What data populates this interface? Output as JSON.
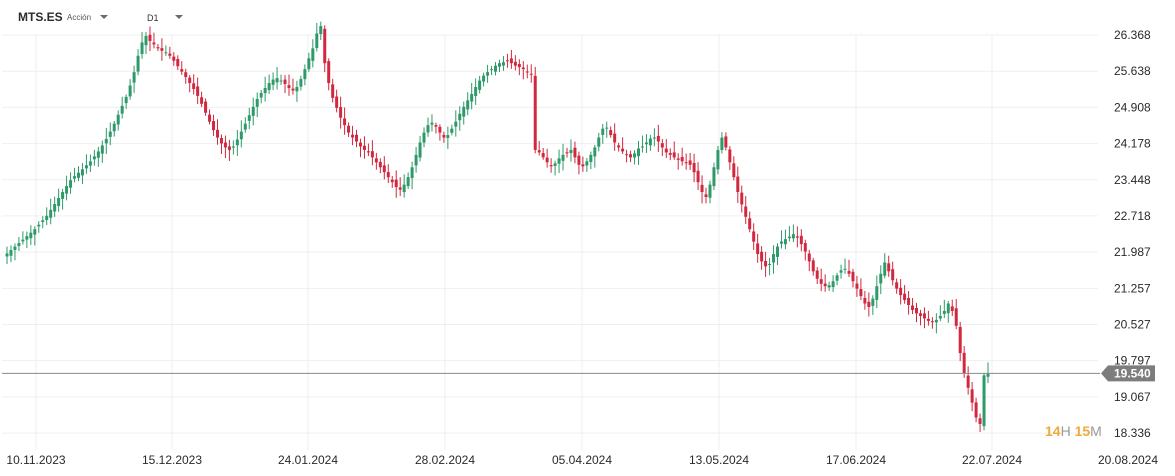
{
  "toolbar": {
    "symbol": "MTS.ES",
    "asset_type": "Acción",
    "timeframe": "D1"
  },
  "countdown": {
    "hours": "14",
    "hours_unit": "H",
    "minutes": "15",
    "minutes_unit": "M"
  },
  "colors": {
    "up": "#2e9a6a",
    "down": "#d2283f",
    "price_line": "#8a8a8a",
    "price_tag": "#7d7d7d",
    "countdown": "#f0a93a"
  },
  "chart_data": {
    "type": "candlestick",
    "ylim": [
      18.15,
      26.66
    ],
    "y_ticks": [
      "26.368",
      "25.638",
      "24.908",
      "24.178",
      "23.448",
      "22.718",
      "21.987",
      "21.257",
      "20.527",
      "19.797",
      "19.067",
      "18.336"
    ],
    "x_ticks": [
      "10.11.2023",
      "15.12.2023",
      "24.01.2024",
      "28.02.2024",
      "05.04.2024",
      "13.05.2024",
      "17.06.2024",
      "22.07.2024",
      "20.08.2024"
    ],
    "current_price": "19.540",
    "close_series": [
      21.96,
      22.03,
      22.1,
      22.17,
      22.24,
      22.31,
      22.38,
      22.45,
      22.54,
      22.63,
      22.72,
      22.84,
      22.96,
      23.08,
      23.2,
      23.32,
      23.44,
      23.52,
      23.59,
      23.66,
      23.74,
      23.82,
      23.92,
      24.02,
      24.14,
      24.27,
      24.42,
      24.58,
      24.76,
      24.94,
      25.12,
      25.35,
      25.62,
      25.95,
      26.22,
      26.35,
      26.25,
      26.18,
      26.1,
      26.05,
      26.02,
      25.95,
      25.85,
      25.74,
      25.63,
      25.52,
      25.4,
      25.28,
      25.14,
      24.98,
      24.8,
      24.62,
      24.45,
      24.3,
      24.18,
      24.1,
      24.05,
      24.12,
      24.26,
      24.42,
      24.58,
      24.75,
      24.92,
      25.08,
      25.2,
      25.3,
      25.4,
      25.47,
      25.5,
      25.45,
      25.38,
      25.3,
      25.25,
      25.32,
      25.48,
      25.68,
      25.9,
      26.1,
      26.4,
      26.55,
      25.8,
      25.4,
      25.1,
      24.9,
      24.7,
      24.55,
      24.4,
      24.3,
      24.22,
      24.12,
      24.05,
      24.0,
      23.9,
      23.8,
      23.7,
      23.6,
      23.5,
      23.4,
      23.3,
      23.25,
      23.35,
      23.5,
      23.7,
      23.95,
      24.2,
      24.4,
      24.55,
      24.6,
      24.52,
      24.4,
      24.3,
      24.35,
      24.48,
      24.62,
      24.78,
      24.92,
      25.05,
      25.18,
      25.32,
      25.45,
      25.55,
      25.62,
      25.68,
      25.75,
      25.8,
      25.82,
      25.85,
      25.8,
      25.75,
      25.72,
      25.68,
      25.62,
      25.58,
      24.05,
      24.0,
      23.9,
      23.8,
      23.72,
      23.78,
      23.88,
      23.95,
      24.0,
      24.05,
      23.9,
      23.75,
      23.72,
      23.82,
      23.95,
      24.1,
      24.3,
      24.48,
      24.5,
      24.35,
      24.2,
      24.1,
      24.02,
      23.95,
      23.9,
      23.98,
      24.08,
      24.12,
      24.2,
      24.28,
      24.3,
      24.22,
      24.1,
      24.0,
      23.95,
      23.9,
      23.85,
      23.82,
      23.8,
      23.75,
      23.6,
      23.4,
      23.2,
      23.1,
      23.35,
      23.7,
      24.05,
      24.3,
      24.1,
      23.8,
      23.5,
      23.2,
      22.95,
      22.7,
      22.45,
      22.2,
      21.95,
      21.8,
      21.7,
      21.75,
      21.95,
      22.1,
      22.2,
      22.25,
      22.3,
      22.35,
      22.28,
      22.15,
      22.0,
      21.8,
      21.6,
      21.45,
      21.35,
      21.3,
      21.32,
      21.4,
      21.52,
      21.62,
      21.65,
      21.55,
      21.4,
      21.25,
      21.1,
      20.95,
      20.88,
      21.05,
      21.3,
      21.55,
      21.78,
      21.6,
      21.42,
      21.25,
      21.12,
      21.02,
      20.92,
      20.82,
      20.75,
      20.7,
      20.65,
      20.6,
      20.58,
      20.62,
      20.7,
      20.8,
      20.95,
      20.8,
      20.5,
      19.95,
      19.55,
      19.25,
      18.95,
      18.65,
      18.52,
      19.5,
      19.54
    ]
  }
}
